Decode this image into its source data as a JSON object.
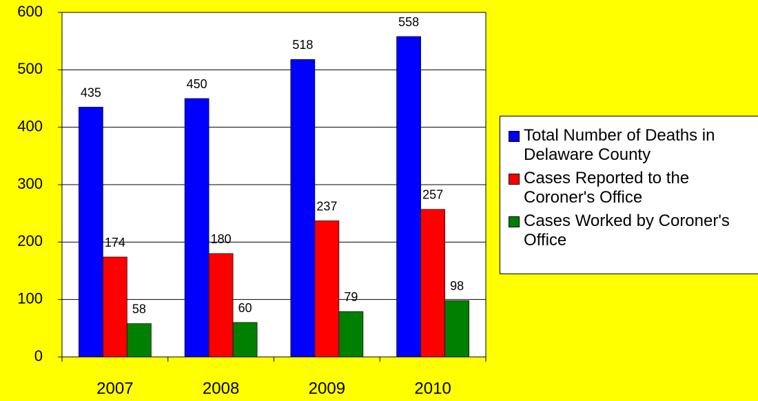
{
  "chart_data": {
    "type": "bar",
    "categories": [
      "2007",
      "2008",
      "2009",
      "2010"
    ],
    "series": [
      {
        "name": "Total Number of Deaths in Delaware County",
        "color": "#0000ff",
        "values": [
          435,
          450,
          518,
          558
        ]
      },
      {
        "name": "Cases Reported to the Coroner's Office",
        "color": "#ff0000",
        "values": [
          174,
          180,
          237,
          257
        ]
      },
      {
        "name": "Cases Worked by Coroner's Office",
        "color": "#008000",
        "values": [
          58,
          60,
          79,
          98
        ]
      }
    ],
    "ylim": [
      0,
      600
    ],
    "yticks": [
      0,
      100,
      200,
      300,
      400,
      500,
      600
    ],
    "grid": true,
    "legend": "right"
  }
}
